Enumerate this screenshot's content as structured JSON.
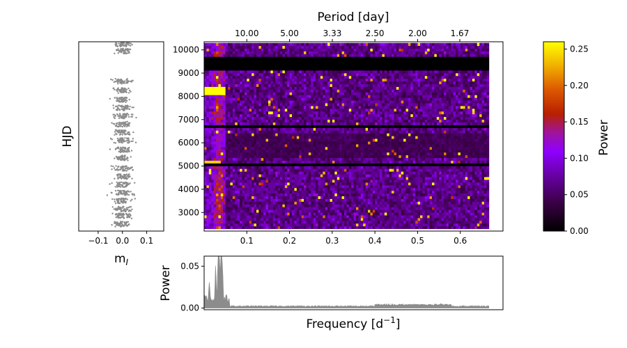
{
  "chart_data": [
    {
      "id": "lightcurve",
      "type": "scatter",
      "xlabel": "m",
      "xlabel_sub": "I",
      "ylabel": "HJD",
      "xlim": [
        -0.18,
        0.17
      ],
      "ylim": [
        2200,
        10350
      ],
      "xticks": [
        -0.1,
        0.0,
        0.1
      ],
      "xtick_labels": [
        "−0.1",
        "0.0",
        "0.1"
      ],
      "point_color": "#8c8c8c",
      "season_centers": [
        2500,
        2850,
        3150,
        3500,
        3850,
        4200,
        4550,
        4900,
        5350,
        5700,
        6100,
        6450,
        6800,
        7150,
        7500,
        7850,
        8250,
        8650,
        9950,
        10250
      ],
      "season_spread": 0.03
    },
    {
      "id": "dynamic-periodogram",
      "type": "heatmap",
      "xlabel_top": "Period [day]",
      "ylabel": "",
      "xlim": [
        0,
        0.7
      ],
      "ylim": [
        2200,
        10350
      ],
      "data_freq_max": 0.667,
      "xticks": [
        0.1,
        0.2,
        0.3,
        0.4,
        0.5,
        0.6
      ],
      "xtick_labels": [
        "0.1",
        "0.2",
        "0.3",
        "0.4",
        "0.5",
        "0.6"
      ],
      "yticks": [
        3000,
        4000,
        5000,
        6000,
        7000,
        8000,
        9000,
        10000
      ],
      "ytick_labels": [
        "3000",
        "4000",
        "5000",
        "6000",
        "7000",
        "8000",
        "9000",
        "10000"
      ],
      "top_ticks_period": [
        10.0,
        5.0,
        3.33,
        2.5,
        2.0,
        1.67
      ],
      "top_tick_labels": [
        "10.00",
        "5.00",
        "3.33",
        "2.50",
        "2.00",
        "1.67"
      ],
      "gap_bands": [
        [
          9150,
          9700
        ],
        [
          7930,
          7970
        ],
        [
          6700,
          6760
        ],
        [
          6540,
          6580
        ],
        [
          5050,
          5080
        ]
      ],
      "strong_bursts": [
        {
          "f": [
            0.0,
            0.05
          ],
          "y": [
            8050,
            8400
          ],
          "power": 0.26
        },
        {
          "f": [
            0.0,
            0.04
          ],
          "y": [
            5100,
            5250
          ],
          "power": 0.24
        }
      ],
      "colormap": "gnuplot"
    },
    {
      "id": "mean-periodogram",
      "type": "area",
      "xlabel": "Frequency [d",
      "xlabel_sup": "−1",
      "xlabel_end": "]",
      "ylabel": "Power",
      "xlim": [
        0,
        0.7
      ],
      "ylim": [
        -0.002,
        0.062
      ],
      "yticks": [
        0.0,
        0.05
      ],
      "ytick_labels": [
        "0.00",
        "0.05"
      ],
      "peaks": [
        {
          "f": 0.012,
          "p": 0.022
        },
        {
          "f": 0.027,
          "p": 0.038
        },
        {
          "f": 0.033,
          "p": 0.057
        },
        {
          "f": 0.036,
          "p": 0.045
        },
        {
          "f": 0.04,
          "p": 0.058
        },
        {
          "f": 0.043,
          "p": 0.04
        }
      ],
      "fill_color": "#8c8c8c"
    },
    {
      "id": "colorbar",
      "type": "colorbar",
      "label": "Power",
      "vmin": 0.0,
      "vmax": 0.26,
      "ticks": [
        0.0,
        0.05,
        0.1,
        0.15,
        0.2,
        0.25
      ],
      "tick_labels": [
        "0.00",
        "0.05",
        "0.10",
        "0.15",
        "0.20",
        "0.25"
      ]
    }
  ]
}
